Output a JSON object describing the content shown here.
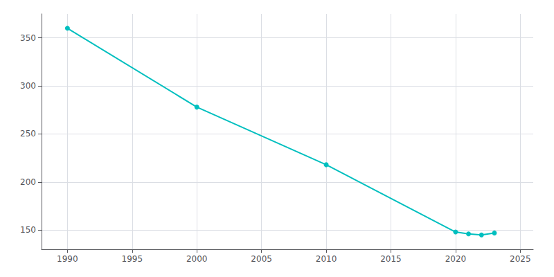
{
  "chart_data": {
    "type": "line",
    "x": [
      1990,
      2000,
      2010,
      2020,
      2021,
      2022,
      2023
    ],
    "values": [
      360,
      278,
      218,
      148,
      146,
      145,
      147
    ],
    "color": "#00BFBF",
    "marker": "circle",
    "xlim": [
      1988,
      2026
    ],
    "xticks": [
      1990,
      1995,
      2000,
      2005,
      2010,
      2015,
      2020,
      2025
    ],
    "ylim": [
      130,
      375
    ],
    "yticks": [
      150,
      200,
      250,
      300,
      350
    ],
    "grid": true
  }
}
